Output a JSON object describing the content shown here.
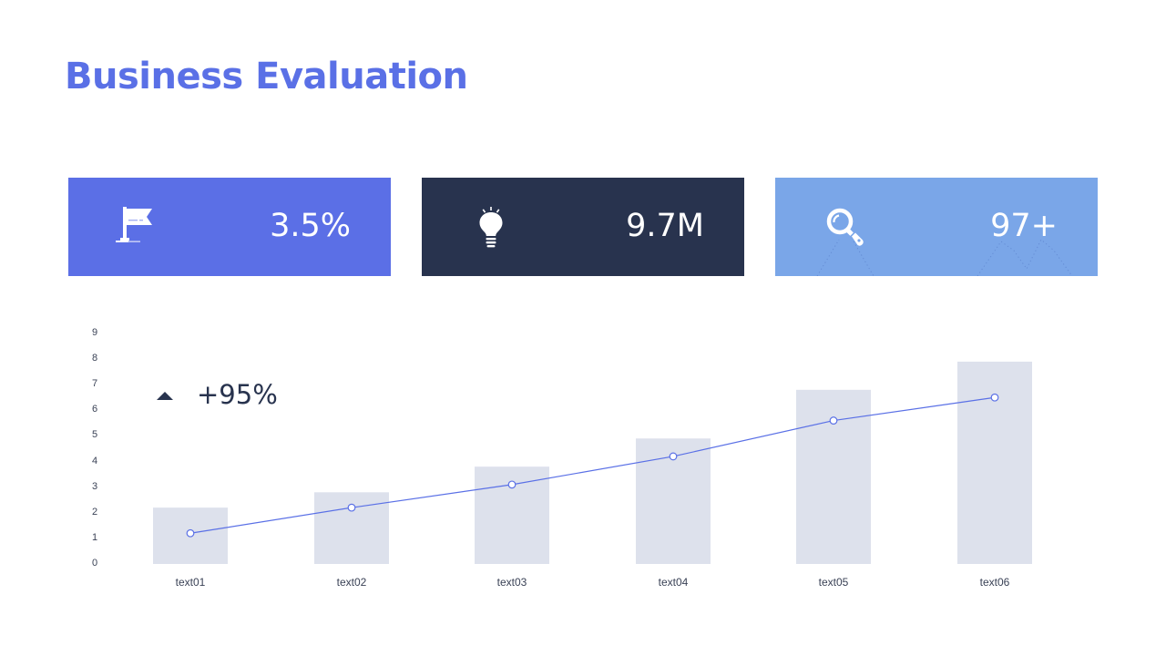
{
  "header": {
    "title": "Business Evaluation"
  },
  "cards": [
    {
      "icon": "flag-icon",
      "value": "3.5%",
      "color": "#5b6fe6"
    },
    {
      "icon": "lightbulb-icon",
      "value": "9.7M",
      "color": "#28334e"
    },
    {
      "icon": "magnifier-icon",
      "value": "97+",
      "color": "#7aa6e8"
    }
  ],
  "growth": {
    "icon": "triangle-up-icon",
    "label": "+95%"
  },
  "colors": {
    "accent": "#5a70e6",
    "dark": "#28334e",
    "light_blue": "#7aa6e8",
    "bar": "#dde1ec"
  },
  "chart_data": {
    "type": "bar",
    "title": "",
    "xlabel": "",
    "ylabel": "",
    "categories": [
      "text01",
      "text02",
      "text03",
      "text04",
      "text05",
      "text06"
    ],
    "series": [
      {
        "name": "bars",
        "type": "bar",
        "color": "#dde1ec",
        "values": [
          2.2,
          2.8,
          3.8,
          4.9,
          6.8,
          7.9
        ]
      },
      {
        "name": "line",
        "type": "line",
        "color": "#5a70e6",
        "values": [
          1.2,
          2.2,
          3.1,
          4.2,
          5.6,
          6.5
        ]
      }
    ],
    "yticks": [
      "0",
      "1",
      "2",
      "3",
      "4",
      "5",
      "6",
      "7",
      "8",
      "9"
    ],
    "ylim": [
      0,
      9
    ],
    "grid": false,
    "legend": "none",
    "annotation": "+95%"
  }
}
